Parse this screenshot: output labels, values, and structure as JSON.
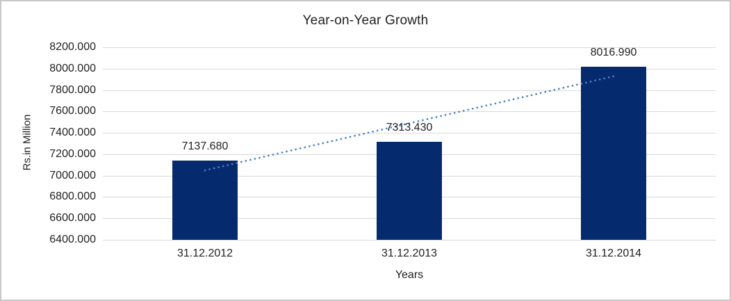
{
  "chart_data": {
    "type": "bar",
    "title": "Year-on-Year Growth",
    "xlabel": "Years",
    "ylabel": "Rs.in Million",
    "categories": [
      "31.12.2012",
      "31.12.2013",
      "31.12.2014"
    ],
    "values": [
      7137.68,
      7313.43,
      8016.99
    ],
    "data_labels": [
      "7137.680",
      "7313.430",
      "8016.990"
    ],
    "ylim": [
      6400,
      8200
    ],
    "ytick_step": 200,
    "ytick_decimals": 3,
    "grid": true,
    "legend": "none",
    "trendline": {
      "type": "linear",
      "style": "dotted",
      "start_value": 7049.7,
      "end_value": 7929.0
    },
    "colors": {
      "bar": "#052a6d",
      "trendline": "#4d82c4",
      "gridline": "#d9d9d9",
      "text": "#1f1f1f",
      "background": "#ffffff",
      "border": "#c8c8c8"
    }
  }
}
